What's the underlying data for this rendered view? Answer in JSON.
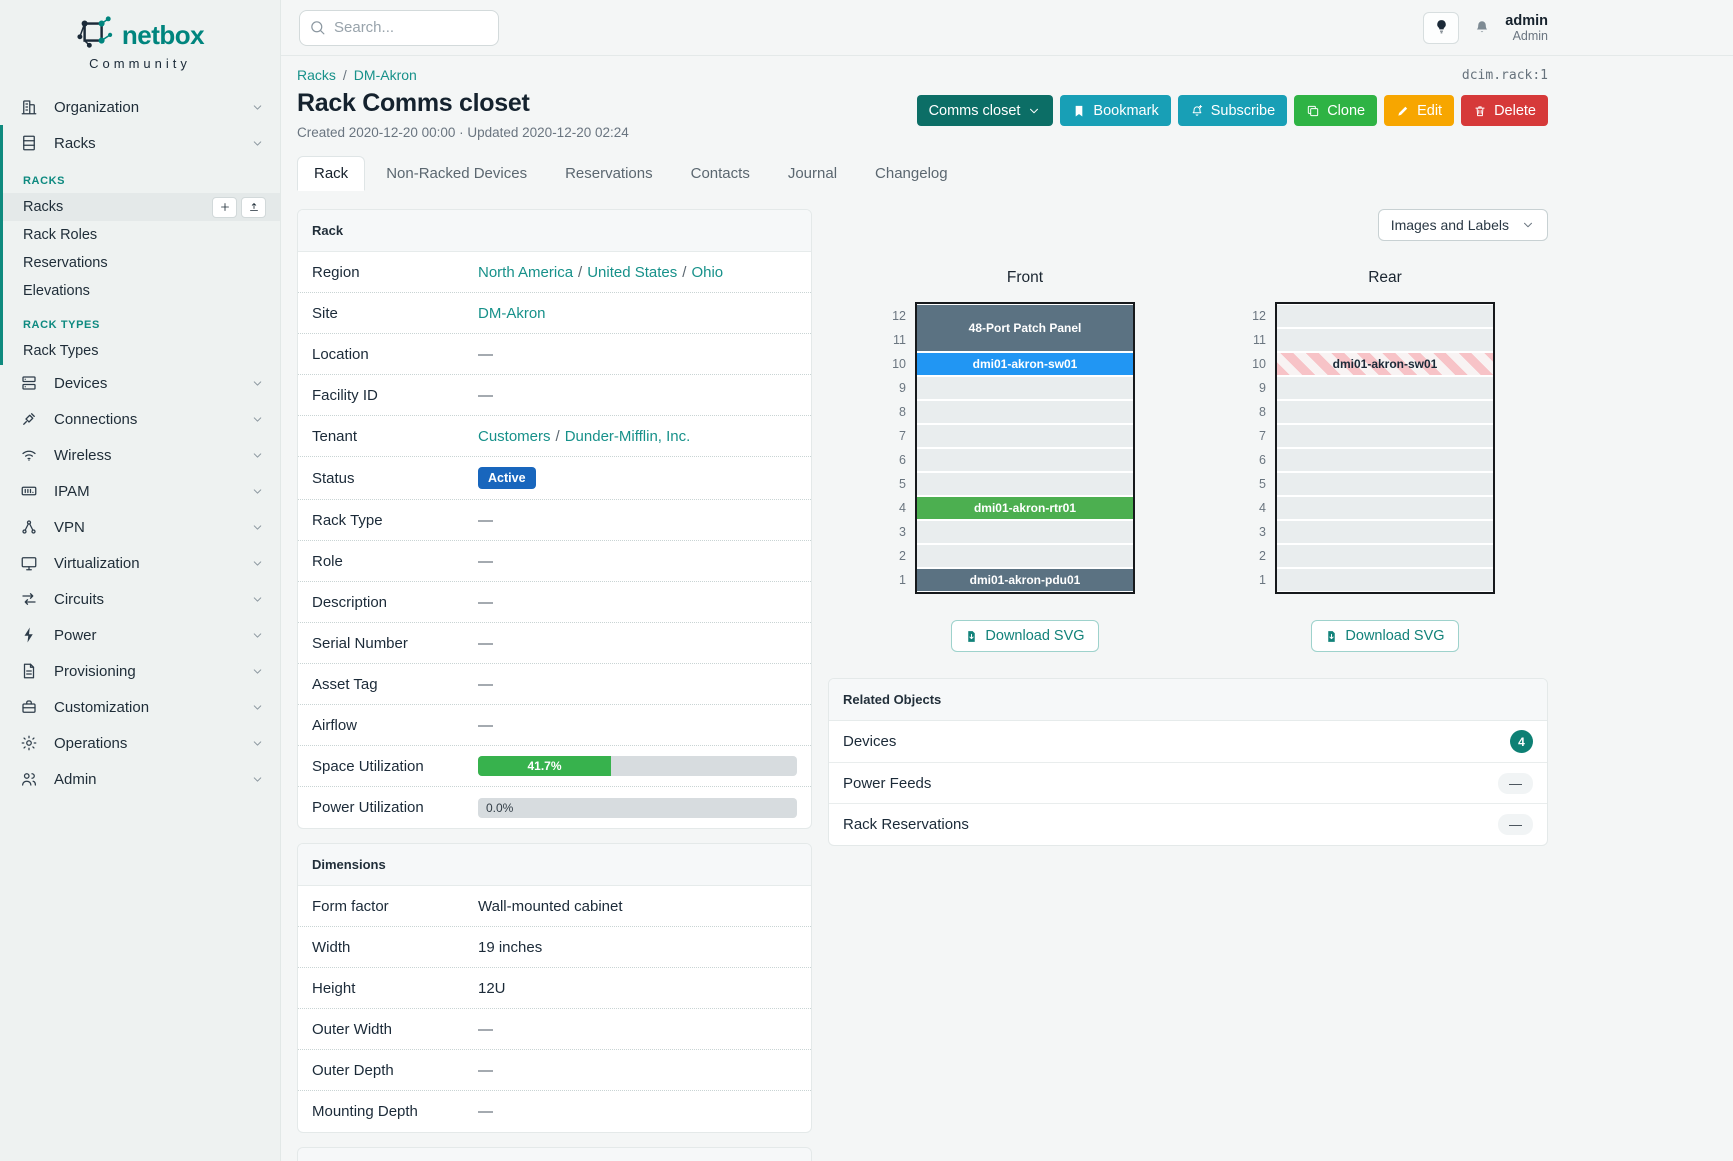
{
  "brand": {
    "name": "netbox",
    "community": "Community"
  },
  "topbar": {
    "search_placeholder": "Search...",
    "user_name": "admin",
    "user_role": "Admin"
  },
  "breadcrumb": {
    "items": [
      "Racks",
      "DM-Akron"
    ],
    "object_id": "dcim.rack:1"
  },
  "page": {
    "title": "Rack Comms closet",
    "meta": "Created 2020-12-20 00:00 · Updated 2020-12-20 02:24"
  },
  "actions": {
    "comms": "Comms closet",
    "bookmark": "Bookmark",
    "subscribe": "Subscribe",
    "clone": "Clone",
    "edit": "Edit",
    "delete": "Delete"
  },
  "tabs": {
    "items": [
      {
        "label": "Rack",
        "active": true
      },
      {
        "label": "Non-Racked Devices",
        "active": false
      },
      {
        "label": "Reservations",
        "active": false
      },
      {
        "label": "Contacts",
        "active": false
      },
      {
        "label": "Journal",
        "active": false
      },
      {
        "label": "Changelog",
        "active": false
      }
    ]
  },
  "sidebar": {
    "top_items": [
      {
        "label": "Organization",
        "icon": "organization-icon"
      },
      {
        "label": "Racks",
        "icon": "racks-icon",
        "expanded": true
      }
    ],
    "submenu": {
      "sections": [
        {
          "title": "RACKS",
          "items": [
            {
              "label": "Racks",
              "active": true,
              "actions": [
                "add",
                "import"
              ]
            },
            {
              "label": "Rack Roles"
            },
            {
              "label": "Reservations"
            },
            {
              "label": "Elevations"
            }
          ]
        },
        {
          "title": "RACK TYPES",
          "items": [
            {
              "label": "Rack Types"
            }
          ]
        }
      ]
    },
    "bottom_items": [
      {
        "label": "Devices",
        "icon": "devices-icon"
      },
      {
        "label": "Connections",
        "icon": "connections-icon"
      },
      {
        "label": "Wireless",
        "icon": "wireless-icon"
      },
      {
        "label": "IPAM",
        "icon": "ipam-icon"
      },
      {
        "label": "VPN",
        "icon": "vpn-icon"
      },
      {
        "label": "Virtualization",
        "icon": "virtualization-icon"
      },
      {
        "label": "Circuits",
        "icon": "circuits-icon"
      },
      {
        "label": "Power",
        "icon": "power-icon"
      },
      {
        "label": "Provisioning",
        "icon": "provisioning-icon"
      },
      {
        "label": "Customization",
        "icon": "customization-icon"
      },
      {
        "label": "Operations",
        "icon": "operations-icon"
      },
      {
        "label": "Admin",
        "icon": "admin-icon"
      }
    ]
  },
  "rack_panel": {
    "title": "Rack",
    "rows": [
      {
        "label": "Region",
        "type": "links",
        "parts": [
          "North America",
          "United States",
          "Ohio"
        ]
      },
      {
        "label": "Site",
        "type": "links",
        "parts": [
          "DM-Akron"
        ]
      },
      {
        "label": "Location",
        "type": "empty",
        "value": "—"
      },
      {
        "label": "Facility ID",
        "type": "empty",
        "value": "—"
      },
      {
        "label": "Tenant",
        "type": "links",
        "parts": [
          "Customers",
          "Dunder-Mifflin, Inc."
        ]
      },
      {
        "label": "Status",
        "type": "badge",
        "value": "Active",
        "color": "#1866bd"
      },
      {
        "label": "Rack Type",
        "type": "empty",
        "value": "—"
      },
      {
        "label": "Role",
        "type": "empty",
        "value": "—"
      },
      {
        "label": "Description",
        "type": "empty",
        "value": "—"
      },
      {
        "label": "Serial Number",
        "type": "empty",
        "value": "—"
      },
      {
        "label": "Asset Tag",
        "type": "empty",
        "value": "—"
      },
      {
        "label": "Airflow",
        "type": "empty",
        "value": "—"
      },
      {
        "label": "Space Utilization",
        "type": "progress",
        "percent": 41.7,
        "display": "41.7%",
        "color": "#37b24d"
      },
      {
        "label": "Power Utilization",
        "type": "progress",
        "percent": 0,
        "display": "0.0%",
        "color": "#37b24d"
      }
    ]
  },
  "dimensions_panel": {
    "title": "Dimensions",
    "rows": [
      {
        "label": "Form factor",
        "type": "text",
        "value": "Wall-mounted cabinet"
      },
      {
        "label": "Width",
        "type": "text",
        "value": "19 inches"
      },
      {
        "label": "Height",
        "type": "text",
        "value": "12U"
      },
      {
        "label": "Outer Width",
        "type": "empty",
        "value": "—"
      },
      {
        "label": "Outer Depth",
        "type": "empty",
        "value": "—"
      },
      {
        "label": "Mounting Depth",
        "type": "empty",
        "value": "—"
      }
    ]
  },
  "related_panel": {
    "title": "Related Objects",
    "rows": [
      {
        "label": "Devices",
        "badge": "4",
        "badge_type": "count"
      },
      {
        "label": "Power Feeds",
        "badge": "—",
        "badge_type": "dash"
      },
      {
        "label": "Rack Reservations",
        "badge": "—",
        "badge_type": "dash"
      }
    ]
  },
  "elevations": {
    "toggle_label": "Images and Labels",
    "download_label": "Download SVG",
    "units_total": 12,
    "front": {
      "title": "Front",
      "slots": [
        {
          "u": 2,
          "kind": "device",
          "label": "48-Port Patch Panel",
          "color": "#5b7282"
        },
        {
          "u": 1,
          "kind": "device",
          "label": "dmi01-akron-sw01",
          "color": "#2196f3"
        },
        {
          "u": 1,
          "kind": "empty"
        },
        {
          "u": 1,
          "kind": "empty"
        },
        {
          "u": 1,
          "kind": "empty"
        },
        {
          "u": 1,
          "kind": "empty"
        },
        {
          "u": 1,
          "kind": "empty"
        },
        {
          "u": 1,
          "kind": "device",
          "label": "dmi01-akron-rtr01",
          "color": "#4caf50"
        },
        {
          "u": 1,
          "kind": "empty"
        },
        {
          "u": 1,
          "kind": "empty"
        },
        {
          "u": 1,
          "kind": "device",
          "label": "dmi01-akron-pdu01",
          "color": "#5b7282"
        }
      ]
    },
    "rear": {
      "title": "Rear",
      "slots": [
        {
          "u": 1,
          "kind": "empty"
        },
        {
          "u": 1,
          "kind": "empty"
        },
        {
          "u": 1,
          "kind": "ghost",
          "label": "dmi01-akron-sw01"
        },
        {
          "u": 1,
          "kind": "empty"
        },
        {
          "u": 1,
          "kind": "empty"
        },
        {
          "u": 1,
          "kind": "empty"
        },
        {
          "u": 1,
          "kind": "empty"
        },
        {
          "u": 1,
          "kind": "empty"
        },
        {
          "u": 1,
          "kind": "empty"
        },
        {
          "u": 1,
          "kind": "empty"
        },
        {
          "u": 1,
          "kind": "empty"
        },
        {
          "u": 1,
          "kind": "empty"
        }
      ]
    }
  },
  "colors": {
    "accent_teal": "#0f8a7e",
    "link_teal": "#17918a",
    "status_active_blue": "#1866bd",
    "progress_green": "#37b24d",
    "device_slate": "#5b7282",
    "device_blue": "#2196f3",
    "device_green": "#4caf50",
    "button_dark_teal": "#0c6e66",
    "button_cyan": "#189fb6",
    "button_green": "#2eb344",
    "button_orange": "#f7a600",
    "button_red": "#d63939"
  }
}
